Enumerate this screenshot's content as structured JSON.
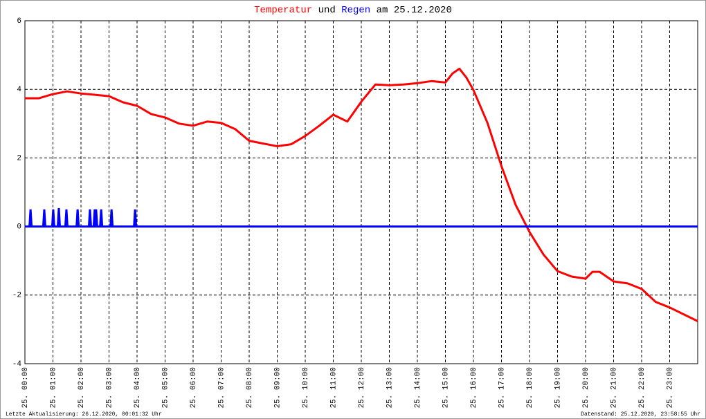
{
  "chart_data": {
    "type": "line",
    "title_middle": "und",
    "title_end": "am 25.12.2020",
    "footer_left": "Letzte Aktualisierung: 26.12.2020, 00:01:32 Uhr",
    "footer_right": "Datenstand: 25.12.2020, 23:58:55 Uhr",
    "xlim": [
      0,
      24
    ],
    "xticks": [
      {
        "value": 0,
        "label": "25. 00:00"
      },
      {
        "value": 1,
        "label": "25. 01:00"
      },
      {
        "value": 2,
        "label": "25. 02:00"
      },
      {
        "value": 3,
        "label": "25. 03:00"
      },
      {
        "value": 4,
        "label": "25. 04:00"
      },
      {
        "value": 5,
        "label": "25. 05:00"
      },
      {
        "value": 6,
        "label": "25. 06:00"
      },
      {
        "value": 7,
        "label": "25. 07:00"
      },
      {
        "value": 8,
        "label": "25. 08:00"
      },
      {
        "value": 9,
        "label": "25. 09:00"
      },
      {
        "value": 10,
        "label": "25. 10:00"
      },
      {
        "value": 11,
        "label": "25. 11:00"
      },
      {
        "value": 12,
        "label": "25. 12:00"
      },
      {
        "value": 13,
        "label": "25. 13:00"
      },
      {
        "value": 14,
        "label": "25. 14:00"
      },
      {
        "value": 15,
        "label": "25. 15:00"
      },
      {
        "value": 16,
        "label": "25. 16:00"
      },
      {
        "value": 17,
        "label": "25. 17:00"
      },
      {
        "value": 18,
        "label": "25. 18:00"
      },
      {
        "value": 19,
        "label": "25. 19:00"
      },
      {
        "value": 20,
        "label": "25. 20:00"
      },
      {
        "value": 21,
        "label": "25. 21:00"
      },
      {
        "value": 22,
        "label": "25. 22:00"
      },
      {
        "value": 23,
        "label": "25. 23:00"
      }
    ],
    "ylim": [
      -4,
      6
    ],
    "yticks": [
      -4,
      -2,
      0,
      2,
      4,
      6
    ],
    "grid": true,
    "series": [
      {
        "name": "Temperatur",
        "color": "#ff0000",
        "x": [
          0,
          0.5,
          1,
          1.5,
          2,
          2.5,
          3,
          3.5,
          4,
          4.5,
          5,
          5.5,
          6,
          6.5,
          7,
          7.5,
          8,
          8.5,
          9,
          9.5,
          10,
          10.5,
          11,
          11.5,
          12,
          12.5,
          13,
          13.5,
          14,
          14.5,
          15,
          15.25,
          15.5,
          15.75,
          16,
          16.5,
          17,
          17.5,
          18,
          18.5,
          19,
          19.5,
          20,
          20.25,
          20.5,
          21,
          21.5,
          22,
          22.5,
          23,
          23.5,
          24
        ],
        "values": [
          3.74,
          3.74,
          3.86,
          3.94,
          3.88,
          3.84,
          3.8,
          3.62,
          3.52,
          3.28,
          3.18,
          3.0,
          2.94,
          3.06,
          3.02,
          2.84,
          2.5,
          2.42,
          2.34,
          2.4,
          2.64,
          2.94,
          3.26,
          3.06,
          3.64,
          4.14,
          4.12,
          4.14,
          4.18,
          4.24,
          4.2,
          4.46,
          4.6,
          4.34,
          3.98,
          3.02,
          1.76,
          0.64,
          -0.16,
          -0.82,
          -1.3,
          -1.46,
          -1.52,
          -1.32,
          -1.32,
          -1.6,
          -1.66,
          -1.82,
          -2.2,
          -2.36,
          -2.56,
          -2.76
        ]
      },
      {
        "name": "Regen",
        "color": "#0000ff",
        "x": [
          0.2,
          0.69,
          1.01,
          1.21,
          1.48,
          1.88,
          2.32,
          2.49,
          2.54,
          2.72,
          3.09,
          3.93
        ],
        "values": [
          0.5,
          0.5,
          0.5,
          0.54,
          0.5,
          0.5,
          0.5,
          0.5,
          0.5,
          0.5,
          0.5,
          0.5
        ]
      }
    ]
  }
}
